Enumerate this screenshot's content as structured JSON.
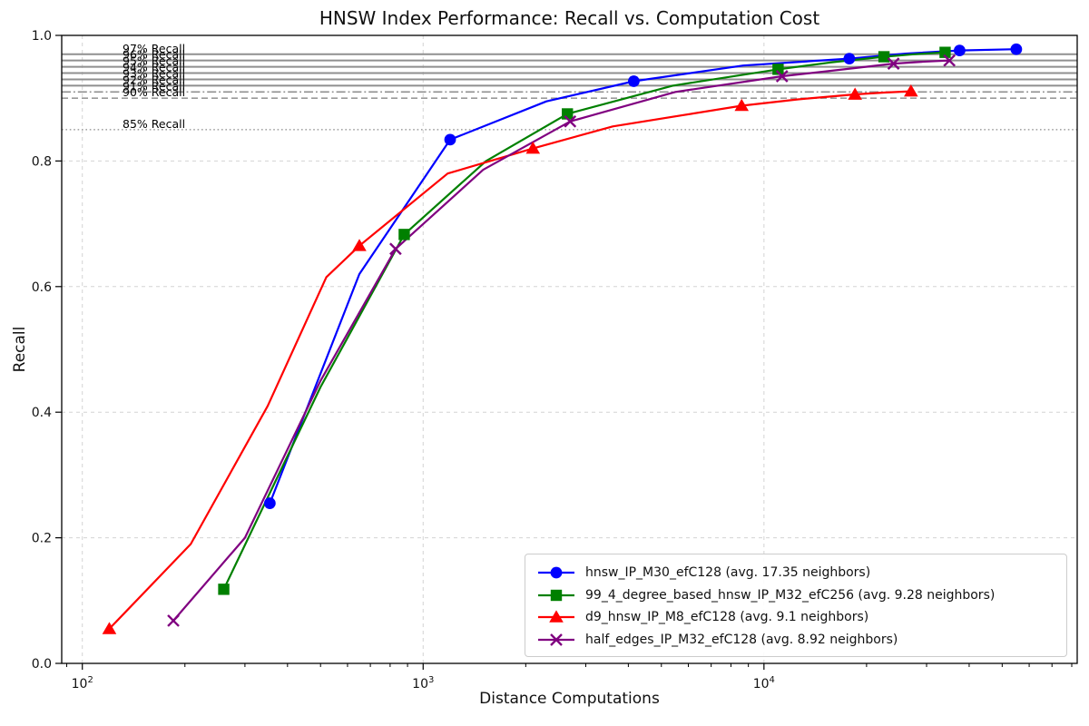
{
  "title": "HNSW Index Performance: Recall vs. Computation Cost",
  "chart_data": {
    "type": "line",
    "title": "HNSW Index Performance: Recall vs. Computation Cost",
    "xlabel": "Distance Computations",
    "ylabel": "Recall",
    "x_scale": "log",
    "xlim": [
      87,
      83000
    ],
    "ylim": [
      0,
      1.0
    ],
    "x_ticks": [
      {
        "value": 100,
        "base": "10",
        "exp": "2"
      },
      {
        "value": 1000,
        "base": "10",
        "exp": "3"
      },
      {
        "value": 10000,
        "base": "10",
        "exp": "4"
      }
    ],
    "y_ticks": [
      {
        "value": 0.0,
        "label": "0.0"
      },
      {
        "value": 0.2,
        "label": "0.2"
      },
      {
        "value": 0.4,
        "label": "0.4"
      },
      {
        "value": 0.6,
        "label": "0.6"
      },
      {
        "value": 0.8,
        "label": "0.8"
      },
      {
        "value": 1.0,
        "label": "1.0"
      }
    ],
    "grid": {
      "show": true,
      "which": "major",
      "style": "dashed",
      "color": "#d3d3d3"
    },
    "legend_position": "lower right",
    "colors": {
      "reference_solid": "#8f8f8f",
      "reference_dashdot": "#8f8f8f",
      "reference_dashed": "#9a9a9a",
      "reference_dotted": "#a6a6a6",
      "spine": "#000000"
    },
    "reference_lines": [
      {
        "recall": 0.97,
        "label": "97% Recall",
        "style": "solid"
      },
      {
        "recall": 0.96,
        "label": "96% Recall",
        "style": "solid"
      },
      {
        "recall": 0.95,
        "label": "95% Recall",
        "style": "solid"
      },
      {
        "recall": 0.94,
        "label": "94% Recall",
        "style": "solid"
      },
      {
        "recall": 0.93,
        "label": "93% Recall",
        "style": "solid"
      },
      {
        "recall": 0.92,
        "label": "92% Recall",
        "style": "solid"
      },
      {
        "recall": 0.91,
        "label": "91% Recall",
        "style": "dashdot"
      },
      {
        "recall": 0.9,
        "label": "90% Recall",
        "style": "dashed"
      },
      {
        "recall": 0.85,
        "label": "85% Recall",
        "style": "dotted"
      }
    ],
    "series": [
      {
        "name": "hnsw_IP_M30_efC128 (avg. 17.35 neighbors)",
        "color": "#0000ff",
        "marker": "circle",
        "points": [
          [
            355,
            0.255
          ],
          [
            1200,
            0.834
          ],
          [
            4150,
            0.927
          ],
          [
            17800,
            0.963
          ],
          [
            37500,
            0.976
          ],
          [
            55000,
            0.978
          ]
        ],
        "line": [
          [
            355,
            0.255
          ],
          [
            650,
            0.62
          ],
          [
            1200,
            0.834
          ],
          [
            2300,
            0.895
          ],
          [
            4150,
            0.927
          ],
          [
            8700,
            0.952
          ],
          [
            17800,
            0.963
          ],
          [
            26000,
            0.971
          ],
          [
            37500,
            0.976
          ],
          [
            55000,
            0.978
          ]
        ]
      },
      {
        "name": "99_4_degree_based_hnsw_IP_M32_efC256 (avg. 9.28 neighbors)",
        "color": "#008000",
        "marker": "square",
        "points": [
          [
            260,
            0.118
          ],
          [
            880,
            0.683
          ],
          [
            2650,
            0.875
          ],
          [
            11000,
            0.946
          ],
          [
            22500,
            0.966
          ],
          [
            34000,
            0.973
          ]
        ],
        "line": [
          [
            260,
            0.118
          ],
          [
            500,
            0.44
          ],
          [
            880,
            0.683
          ],
          [
            1530,
            0.8
          ],
          [
            2650,
            0.875
          ],
          [
            5400,
            0.92
          ],
          [
            11000,
            0.946
          ],
          [
            15700,
            0.957
          ],
          [
            22500,
            0.966
          ],
          [
            27500,
            0.97
          ],
          [
            34000,
            0.973
          ]
        ]
      },
      {
        "name": "d9_hnsw_IP_M8_efC128 (avg. 9.1 neighbors)",
        "color": "#ff0000",
        "marker": "triangle",
        "points": [
          [
            120,
            0.055
          ],
          [
            650,
            0.665
          ],
          [
            2100,
            0.82
          ],
          [
            8600,
            0.888
          ],
          [
            18500,
            0.906
          ],
          [
            27000,
            0.911
          ]
        ],
        "line": [
          [
            120,
            0.055
          ],
          [
            208,
            0.19
          ],
          [
            350,
            0.41
          ],
          [
            520,
            0.615
          ],
          [
            650,
            0.665
          ],
          [
            1180,
            0.78
          ],
          [
            2100,
            0.82
          ],
          [
            3600,
            0.855
          ],
          [
            8600,
            0.888
          ],
          [
            12500,
            0.898
          ],
          [
            18500,
            0.906
          ],
          [
            22500,
            0.909
          ],
          [
            27000,
            0.911
          ]
        ]
      },
      {
        "name": "half_edges_IP_M32_efC128 (avg. 8.92 neighbors)",
        "color": "#800080",
        "marker": "x",
        "points": [
          [
            185,
            0.068
          ],
          [
            830,
            0.66
          ],
          [
            2700,
            0.863
          ],
          [
            11300,
            0.935
          ],
          [
            24000,
            0.955
          ],
          [
            35000,
            0.96
          ]
        ],
        "line": [
          [
            185,
            0.068
          ],
          [
            300,
            0.2
          ],
          [
            500,
            0.45
          ],
          [
            830,
            0.66
          ],
          [
            1500,
            0.786
          ],
          [
            2700,
            0.863
          ],
          [
            5500,
            0.91
          ],
          [
            11300,
            0.935
          ],
          [
            16500,
            0.945
          ],
          [
            24000,
            0.955
          ],
          [
            29000,
            0.958
          ],
          [
            35000,
            0.96
          ]
        ]
      }
    ]
  }
}
